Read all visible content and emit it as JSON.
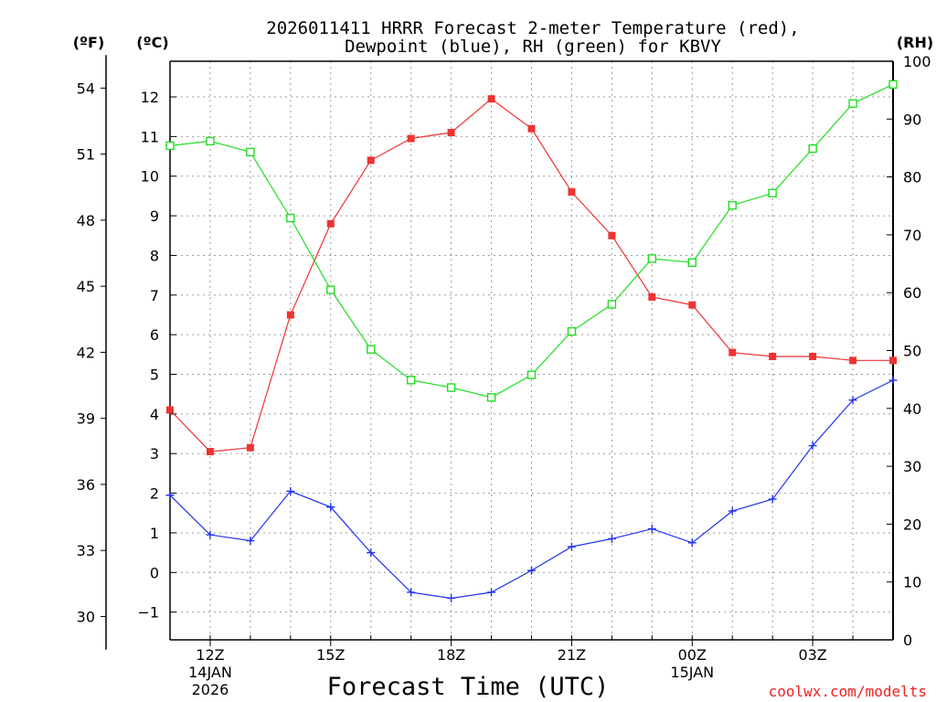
{
  "chart_data": {
    "type": "line",
    "title": [
      "2026011411 HRRR Forecast 2-meter Temperature (red),",
      "Dewpoint (blue), RH (green) for KBVY"
    ],
    "xlabel": "Forecast Time (UTC)",
    "hours": [
      11,
      12,
      13,
      14,
      15,
      16,
      17,
      18,
      19,
      20,
      21,
      22,
      23,
      24,
      25,
      26,
      27,
      28,
      29
    ],
    "xlim": [
      11,
      29
    ],
    "x_ticks": [
      {
        "hour": 12,
        "label": "12Z",
        "sub1": "14JAN",
        "sub2": "2026"
      },
      {
        "hour": 15,
        "label": "15Z"
      },
      {
        "hour": 18,
        "label": "18Z"
      },
      {
        "hour": 21,
        "label": "21Z"
      },
      {
        "hour": 24,
        "label": "00Z",
        "sub1": "15JAN"
      },
      {
        "hour": 27,
        "label": "03Z"
      }
    ],
    "left_c_axis": {
      "unit": "(ºC)",
      "ylim": [
        -1.7,
        12.9
      ],
      "ticks": [
        -1,
        0,
        1,
        2,
        3,
        4,
        5,
        6,
        7,
        8,
        9,
        10,
        11,
        12
      ]
    },
    "left_f_axis": {
      "unit": "(ºF)",
      "ticks": [
        30,
        33,
        36,
        39,
        42,
        45,
        48,
        51,
        54
      ]
    },
    "right_rh_axis": {
      "unit": "(RH)",
      "ylim": [
        0,
        100
      ],
      "ticks": [
        0,
        10,
        20,
        30,
        40,
        50,
        60,
        70,
        80,
        90,
        100
      ]
    },
    "series": [
      {
        "name": "Temperature",
        "unit": "C",
        "color": "#ee3333",
        "marker": "filled-square",
        "values": [
          4.1,
          3.05,
          3.15,
          6.5,
          8.8,
          10.4,
          10.95,
          11.1,
          11.95,
          11.2,
          9.6,
          8.5,
          6.95,
          6.75,
          5.55,
          5.45,
          5.45,
          5.35,
          5.35
        ]
      },
      {
        "name": "Dewpoint",
        "unit": "C",
        "color": "#2233ee",
        "marker": "plus",
        "values": [
          1.95,
          0.95,
          0.8,
          2.05,
          1.65,
          0.5,
          -0.5,
          -0.65,
          -0.5,
          0.05,
          0.65,
          0.85,
          1.1,
          0.75,
          1.55,
          1.85,
          3.2,
          4.35,
          4.85
        ]
      },
      {
        "name": "RH",
        "unit": "%",
        "color": "#22dd22",
        "marker": "open-square",
        "values": [
          85.4,
          86.2,
          84.3,
          72.9,
          60.5,
          50.2,
          44.9,
          43.6,
          41.9,
          45.8,
          53.3,
          58.0,
          65.9,
          65.2,
          75.1,
          77.2,
          84.9,
          92.7,
          96.0
        ]
      }
    ]
  },
  "credit": "coolwx.com/modelts",
  "colors": {
    "grid": "#9a9a9a",
    "credit": "#ee2222"
  }
}
